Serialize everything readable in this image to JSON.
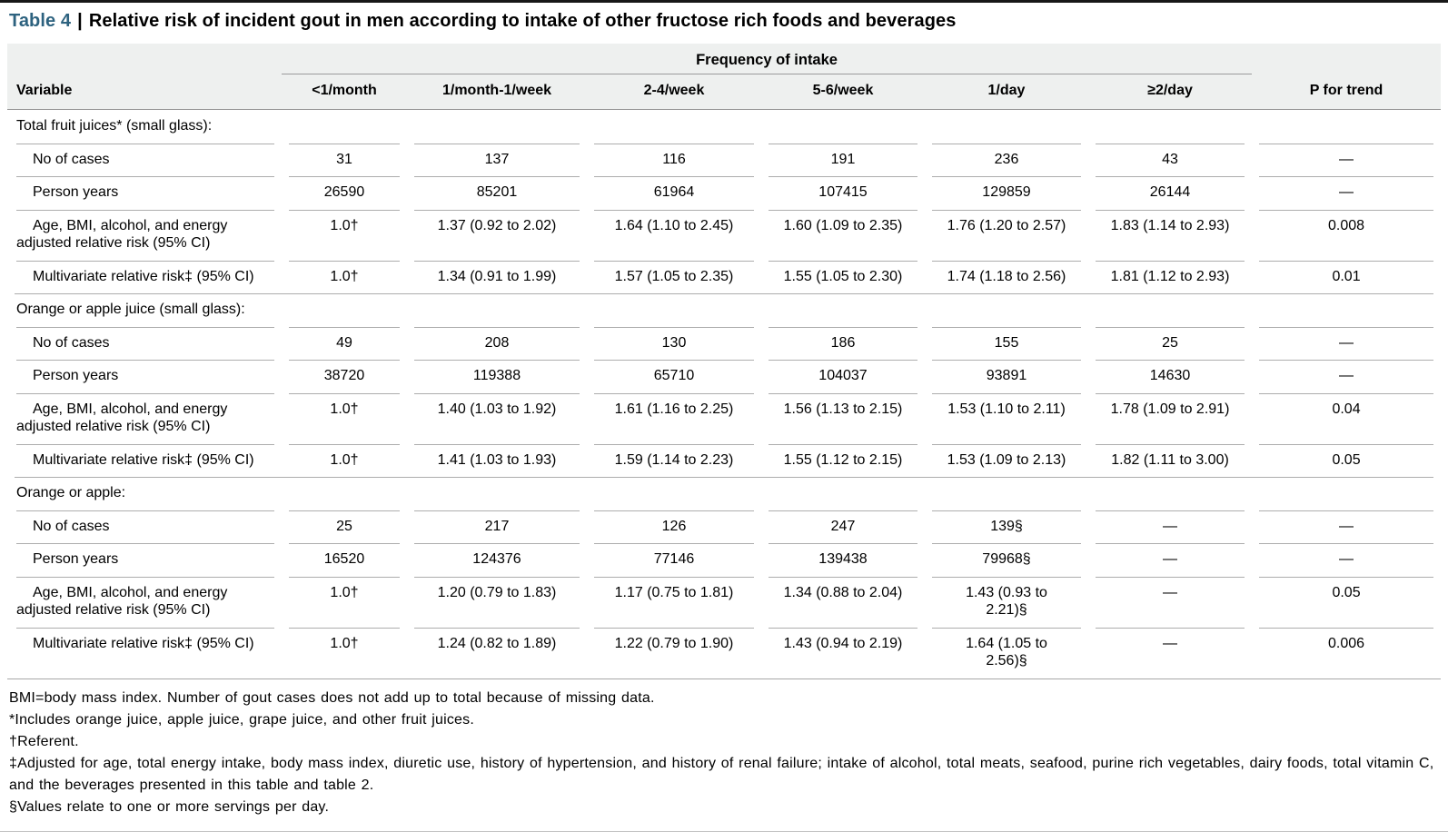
{
  "title": {
    "label": "Table 4",
    "separator": "|",
    "text": "Relative risk of incident gout in men according to intake of other fructose rich foods and beverages"
  },
  "table": {
    "group_header": "Frequency of intake",
    "columns": [
      "Variable",
      "<1/month",
      "1/month-1/week",
      "2-4/week",
      "5-6/week",
      "1/day",
      "≥2/day",
      "P for trend"
    ],
    "sections": [
      {
        "label": "Total fruit juices* (small glass):",
        "rows": [
          {
            "label": "No of cases",
            "values": [
              "31",
              "137",
              "116",
              "191",
              "236",
              "43",
              "—"
            ]
          },
          {
            "label": "Person years",
            "values": [
              "26590",
              "85201",
              "61964",
              "107415",
              "129859",
              "26144",
              "—"
            ]
          },
          {
            "label": "Age, BMI, alcohol, and energy\nadjusted relative risk (95% CI)",
            "values": [
              "1.0†",
              "1.37 (0.92 to 2.02)",
              "1.64 (1.10 to 2.45)",
              "1.60 (1.09 to 2.35)",
              "1.76 (1.20 to 2.57)",
              "1.83 (1.14 to 2.93)",
              "0.008"
            ]
          },
          {
            "label": "Multivariate relative risk‡ (95% CI)",
            "values": [
              "1.0†",
              "1.34 (0.91 to 1.99)",
              "1.57 (1.05 to 2.35)",
              "1.55 (1.05 to 2.30)",
              "1.74 (1.18 to 2.56)",
              "1.81 (1.12 to 2.93)",
              "0.01"
            ]
          }
        ]
      },
      {
        "label": "Orange or apple juice (small glass):",
        "rows": [
          {
            "label": "No of cases",
            "values": [
              "49",
              "208",
              "130",
              "186",
              "155",
              "25",
              "—"
            ]
          },
          {
            "label": "Person years",
            "values": [
              "38720",
              "119388",
              "65710",
              "104037",
              "93891",
              "14630",
              "—"
            ]
          },
          {
            "label": "Age, BMI, alcohol, and energy\nadjusted relative risk (95% CI)",
            "values": [
              "1.0†",
              "1.40 (1.03 to 1.92)",
              "1.61 (1.16 to 2.25)",
              "1.56 (1.13 to 2.15)",
              "1.53 (1.10 to 2.11)",
              "1.78 (1.09 to 2.91)",
              "0.04"
            ]
          },
          {
            "label": "Multivariate relative risk‡ (95% CI)",
            "values": [
              "1.0†",
              "1.41 (1.03 to 1.93)",
              "1.59 (1.14 to 2.23)",
              "1.55 (1.12 to 2.15)",
              "1.53 (1.09 to 2.13)",
              "1.82 (1.11 to 3.00)",
              "0.05"
            ]
          }
        ]
      },
      {
        "label": "Orange or apple:",
        "rows": [
          {
            "label": "No of cases",
            "values": [
              "25",
              "217",
              "126",
              "247",
              "139§",
              "—",
              "—"
            ]
          },
          {
            "label": "Person years",
            "values": [
              "16520",
              "124376",
              "77146",
              "139438",
              "79968§",
              "—",
              "—"
            ]
          },
          {
            "label": "Age, BMI, alcohol, and energy\nadjusted relative risk (95% CI)",
            "values": [
              "1.0†",
              "1.20 (0.79 to 1.83)",
              "1.17 (0.75 to 1.81)",
              "1.34 (0.88 to 2.04)",
              "1.43 (0.93 to\n2.21)§",
              "—",
              "0.05"
            ]
          },
          {
            "label": "Multivariate relative risk‡ (95% CI)",
            "values": [
              "1.0†",
              "1.24 (0.82 to 1.89)",
              "1.22 (0.79 to 1.90)",
              "1.43 (0.94 to 2.19)",
              "1.64 (1.05 to\n2.56)§",
              "—",
              "0.006"
            ]
          }
        ]
      }
    ]
  },
  "footnotes": [
    "BMI=body mass index. Number of gout cases does not add up to total because of missing data.",
    "*Includes orange juice, apple juice, grape juice, and other fruit juices.",
    "†Referent.",
    "‡Adjusted for age, total energy intake, body mass index, diuretic use, history of hypertension, and history of renal failure; intake of alcohol, total meats, seafood, purine rich vegetables, dairy foods, total vitamin C, and the beverages presented in this table and table  2.",
    "§Values relate to one or more servings per day."
  ]
}
